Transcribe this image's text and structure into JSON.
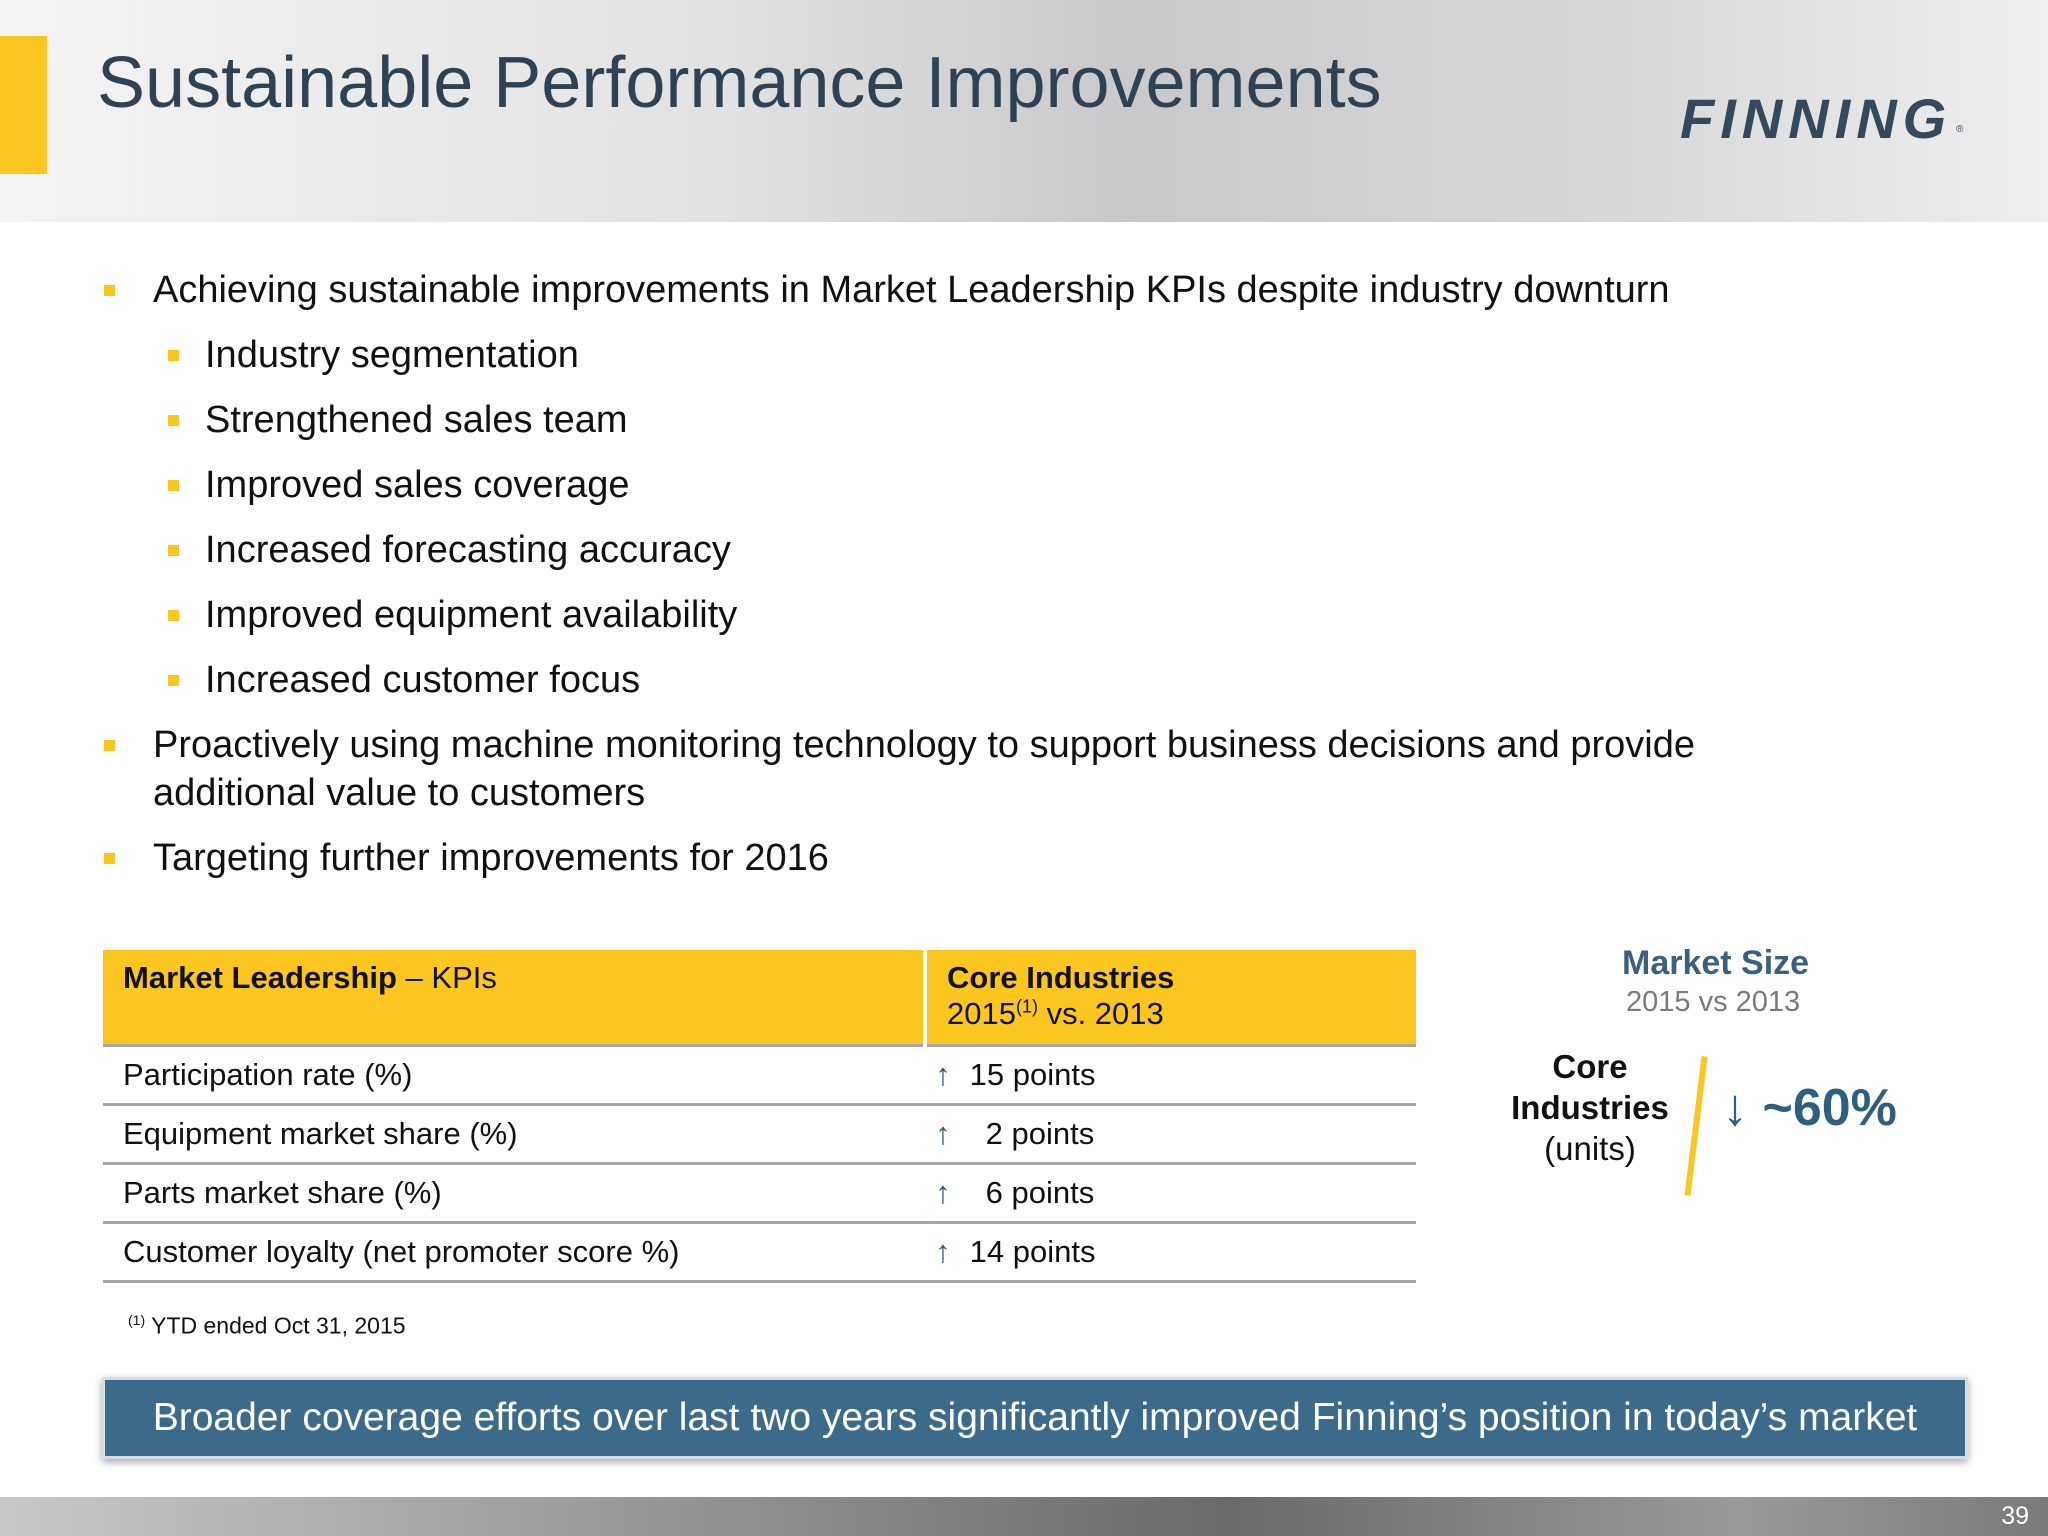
{
  "header": {
    "title": "Sustainable Performance Improvements",
    "logo_text": "FINNING",
    "logo_mark": "®"
  },
  "bullets": [
    {
      "level": 1,
      "text": "Achieving sustainable improvements in Market Leadership KPIs despite industry downturn"
    },
    {
      "level": 2,
      "text": "Industry segmentation"
    },
    {
      "level": 2,
      "text": "Strengthened sales team"
    },
    {
      "level": 2,
      "text": "Improved sales coverage"
    },
    {
      "level": 2,
      "text": "Increased forecasting accuracy"
    },
    {
      "level": 2,
      "text": "Improved equipment availability"
    },
    {
      "level": 2,
      "text": "Increased customer focus"
    },
    {
      "level": 1,
      "text": "Proactively using machine monitoring technology to support business decisions and provide"
    },
    {
      "level": 1,
      "text": "additional value to customers"
    },
    {
      "level": 1,
      "text": "Targeting further improvements for 2016"
    }
  ],
  "kpi_table": {
    "header_col1_bold": "Market Leadership",
    "header_col1_rest": " – KPIs",
    "header_col2_line1": "Core Industries",
    "header_col2_year": "2015",
    "header_col2_sup": "(1)",
    "header_col2_rest": " vs. 2013",
    "rows": [
      {
        "metric": "Participation rate (%)",
        "arrow": "↑",
        "value": "15 points"
      },
      {
        "metric": "Equipment market share (%)",
        "arrow": "↑",
        "value": "2 points"
      },
      {
        "metric": "Parts market share (%)",
        "arrow": "↑",
        "value": "6 points"
      },
      {
        "metric": "Customer loyalty (net promoter score %)",
        "arrow": "↑",
        "value": "14 points"
      }
    ]
  },
  "footnote": {
    "marker": "(1)",
    "text": "YTD ended Oct 31, 2015"
  },
  "market_size": {
    "title": "Market Size",
    "subtitle": "2015 vs 2013",
    "label_line1": "Core",
    "label_line2": "Industries",
    "label_line3": "(units)",
    "value": "↓ ~60%"
  },
  "banner": {
    "text": "Broader coverage efforts over last two years significantly improved Finning’s position in today’s market"
  },
  "footer": {
    "page_number": "39"
  },
  "colors": {
    "accent_yellow": "#fbc620",
    "title_navy": "#2f4254",
    "banner_blue": "#3b6a8a",
    "value_blue": "#2f5f7f"
  }
}
